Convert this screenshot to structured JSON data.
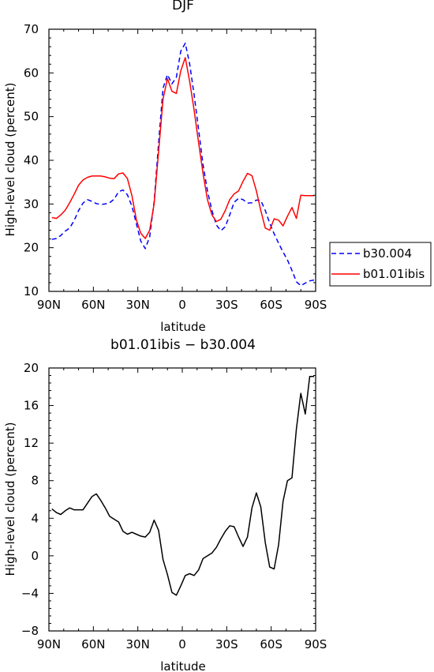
{
  "chart_data": [
    {
      "type": "line",
      "title": "DJF",
      "xlabel": "latitude",
      "ylabel": "High-level cloud (percent)",
      "xlim": [
        -90,
        90
      ],
      "ylim": [
        10,
        70
      ],
      "x_ticks": [
        -90,
        -60,
        -30,
        0,
        30,
        60,
        90
      ],
      "x_tick_labels": [
        "90N",
        "60N",
        "30N",
        "0",
        "30S",
        "60S",
        "90S"
      ],
      "y_ticks": [
        10,
        20,
        30,
        40,
        50,
        60,
        70
      ],
      "y_tick_labels": [
        "10",
        "20",
        "30",
        "40",
        "50",
        "60",
        "70"
      ],
      "legend_position": "right",
      "series": [
        {
          "name": "b30.004",
          "color": "#0000ff",
          "dash": "dashed",
          "x": [
            -88,
            -85,
            -82,
            -79,
            -76,
            -73,
            -70,
            -67,
            -64,
            -61,
            -58,
            -55,
            -52,
            -49,
            -46,
            -43,
            -40,
            -37,
            -34,
            -31,
            -28,
            -25,
            -22,
            -19,
            -16,
            -13,
            -10,
            -7,
            -4,
            -1,
            2,
            5,
            8,
            11,
            14,
            17,
            20,
            23,
            26,
            29,
            32,
            35,
            38,
            41,
            44,
            47,
            50,
            53,
            56,
            59,
            62,
            65,
            68,
            71,
            74,
            77,
            80,
            83,
            86,
            89
          ],
          "values": [
            21.9,
            22.1,
            22.8,
            23.8,
            24.5,
            26.2,
            28.5,
            30.2,
            31.0,
            30.6,
            30.1,
            29.9,
            30.0,
            30.3,
            31.1,
            32.8,
            33.2,
            32.1,
            29.5,
            25.5,
            21.5,
            19.8,
            22.5,
            30.5,
            44.0,
            56.5,
            59.6,
            57.5,
            59.0,
            65.0,
            66.8,
            62.0,
            55.0,
            47.0,
            39.0,
            33.0,
            28.5,
            25.2,
            23.9,
            24.8,
            27.5,
            30.4,
            31.3,
            31.0,
            30.2,
            30.3,
            30.9,
            30.8,
            28.5,
            25.6,
            23.2,
            21.0,
            19.0,
            17.2,
            14.8,
            12.2,
            11.3,
            11.9,
            12.4,
            12.6
          ]
        },
        {
          "name": "b01.01ibis",
          "color": "#ff0000",
          "dash": "solid",
          "x": [
            -88,
            -85,
            -82,
            -79,
            -76,
            -73,
            -70,
            -67,
            -64,
            -61,
            -58,
            -55,
            -52,
            -49,
            -46,
            -43,
            -40,
            -37,
            -34,
            -31,
            -28,
            -25,
            -22,
            -19,
            -16,
            -13,
            -10,
            -7,
            -4,
            -1,
            2,
            5,
            8,
            11,
            14,
            17,
            20,
            23,
            26,
            29,
            32,
            35,
            38,
            41,
            44,
            47,
            50,
            53,
            56,
            59,
            62,
            65,
            68,
            71,
            74,
            77,
            80,
            83,
            86,
            89
          ],
          "values": [
            26.9,
            26.7,
            27.5,
            28.6,
            30.3,
            32.2,
            34.3,
            35.5,
            36.1,
            36.4,
            36.4,
            36.4,
            36.2,
            35.9,
            35.8,
            36.9,
            37.1,
            35.8,
            31.9,
            26.4,
            23.3,
            22.1,
            24.0,
            30.0,
            42.0,
            54.0,
            58.7,
            55.8,
            55.3,
            60.5,
            63.5,
            58.0,
            51.5,
            44.0,
            37.0,
            31.0,
            27.5,
            26.0,
            26.5,
            28.5,
            31.0,
            32.3,
            33.0,
            35.2,
            37.0,
            36.5,
            33.0,
            28.5,
            24.5,
            24.0,
            26.6,
            26.3,
            25.0,
            27.2,
            29.2,
            26.7,
            32.0,
            31.9,
            31.9,
            31.9
          ]
        }
      ]
    },
    {
      "type": "line",
      "title": "b01.01ibis − b30.004",
      "xlabel": "latitude",
      "ylabel": "High-level cloud (percent)",
      "xlim": [
        -90,
        90
      ],
      "ylim": [
        -8,
        20
      ],
      "x_ticks": [
        -90,
        -60,
        -30,
        0,
        30,
        60,
        90
      ],
      "x_tick_labels": [
        "90N",
        "60N",
        "30N",
        "0",
        "30S",
        "60S",
        "90S"
      ],
      "y_ticks": [
        -8,
        -4,
        0,
        4,
        8,
        12,
        16,
        20
      ],
      "y_tick_labels": [
        "−8",
        "−4",
        "0",
        "4",
        "8",
        "12",
        "16",
        "20"
      ],
      "series": [
        {
          "color": "#000000",
          "dash": "solid",
          "x": [
            -88,
            -85,
            -82,
            -79,
            -76,
            -73,
            -70,
            -67,
            -64,
            -61,
            -58,
            -55,
            -52,
            -49,
            -46,
            -43,
            -40,
            -37,
            -34,
            -31,
            -28,
            -25,
            -22,
            -19,
            -16,
            -13,
            -10,
            -7,
            -4,
            -1,
            2,
            5,
            8,
            11,
            14,
            17,
            20,
            23,
            26,
            29,
            32,
            35,
            38,
            41,
            44,
            47,
            50,
            53,
            56,
            59,
            62,
            65,
            68,
            71,
            74,
            77,
            80,
            83,
            86,
            89
          ],
          "values": [
            5.0,
            4.6,
            4.4,
            4.8,
            5.1,
            4.9,
            4.9,
            4.9,
            5.6,
            6.3,
            6.6,
            5.9,
            5.1,
            4.2,
            3.9,
            3.6,
            2.6,
            2.3,
            2.5,
            2.3,
            2.1,
            2.0,
            2.5,
            3.8,
            2.7,
            -0.4,
            -2.0,
            -3.9,
            -4.2,
            -3.2,
            -2.1,
            -1.9,
            -2.1,
            -1.5,
            -0.3,
            0.0,
            0.3,
            0.9,
            1.8,
            2.6,
            3.2,
            3.1,
            2.0,
            1.0,
            2.0,
            5.1,
            6.7,
            5.2,
            1.4,
            -1.2,
            -1.4,
            1.2,
            5.8,
            8.0,
            8.3,
            13.5,
            17.3,
            15.1,
            19.1,
            19.1
          ]
        }
      ]
    }
  ]
}
